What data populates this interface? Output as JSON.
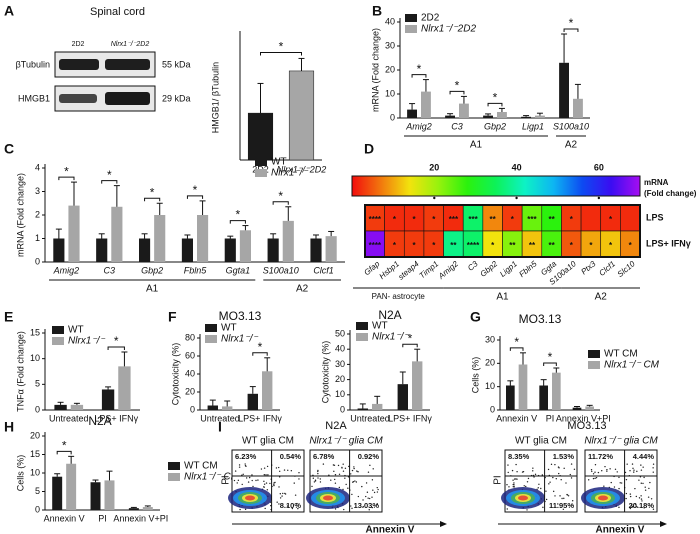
{
  "panel_letters": [
    "A",
    "B",
    "C",
    "D",
    "E",
    "F",
    "G",
    "H",
    "I"
  ],
  "blot": {
    "title": "Spinal cord",
    "lanes": [
      "2D2",
      "Nlrx1⁻/⁻2D2"
    ],
    "rows": [
      {
        "label": "βTubulin",
        "size": "55 kDa"
      },
      {
        "label": "HMGB1",
        "size": "29 kDa"
      }
    ]
  },
  "chart_data": [
    {
      "type": "bar",
      "ylabel": "HMGB1/ βTubulin",
      "categories": [
        "2D2",
        "Nlrx1⁻/⁻2D2"
      ],
      "values": [
        30,
        57
      ],
      "errors": [
        19,
        8
      ],
      "colors": [
        "#1a1a1a",
        "#a6a6a6"
      ],
      "ylim": [
        0,
        80
      ],
      "comparison": "*"
    },
    {
      "type": "grouped_bar",
      "ylabel": "mRNA (Fold change)",
      "categories": [
        "Amig2",
        "C3",
        "Gbp2",
        "Ligp1",
        "S100a10"
      ],
      "groups": [
        "A1",
        "A1",
        "A1",
        "A1",
        "A2"
      ],
      "series": [
        {
          "name": "2D2",
          "color": "#1a1a1a",
          "values": [
            3.5,
            1,
            1,
            0.5,
            23
          ],
          "errors": [
            2.5,
            0.8,
            0.7,
            0.5,
            12
          ]
        },
        {
          "name": "Nlrx1⁻/⁻2D2",
          "color": "#a6a6a6",
          "values": [
            11,
            6,
            2.5,
            1,
            8
          ],
          "errors": [
            5,
            3,
            1.5,
            1,
            6
          ]
        }
      ],
      "stars": [
        "*",
        "*",
        "*",
        null,
        "*"
      ],
      "ylim": [
        0,
        40
      ],
      "yticks": [
        0,
        10,
        20,
        30,
        40
      ]
    },
    {
      "type": "grouped_bar",
      "ylabel": "mRNA (Fold change)",
      "categories": [
        "Amig2",
        "C3",
        "Gbp2",
        "Fbln5",
        "Ggta1",
        "S100a10",
        "Clcf1"
      ],
      "groups": [
        "A1",
        "A1",
        "A1",
        "A1",
        "A1",
        "A2",
        "A2"
      ],
      "series": [
        {
          "name": "WT",
          "color": "#1a1a1a",
          "values": [
            1,
            1,
            1,
            1,
            1,
            1,
            1
          ],
          "errors": [
            0.4,
            0.2,
            0.2,
            0.15,
            0.1,
            0.2,
            0.15
          ]
        },
        {
          "name": "Nlrx1⁻/⁻",
          "color": "#a6a6a6",
          "values": [
            2.4,
            2.35,
            2.0,
            2.0,
            1.35,
            1.75,
            1.1
          ],
          "errors": [
            1.0,
            0.9,
            0.5,
            0.6,
            0.2,
            0.6,
            0.2
          ]
        }
      ],
      "stars": [
        "*",
        "*",
        "*",
        "*",
        "*",
        "*",
        null
      ],
      "ylim": [
        0,
        4
      ],
      "yticks": [
        0,
        1,
        2,
        3,
        4
      ]
    },
    {
      "type": "heatmap",
      "colorbar_label": [
        "mRNA",
        "(Fold change)"
      ],
      "zlim": [
        0,
        70
      ],
      "zticks": [
        20,
        40,
        60
      ],
      "rows": [
        "LPS",
        "LPS+ IFNγ"
      ],
      "columns": [
        "Gfap",
        "Hsbp1",
        "steap4",
        "Timp1",
        "Amig2",
        "C3",
        "Gbp2",
        "Ligp1",
        "Fbln5",
        "Ggta",
        "S100a10",
        "Ptx3",
        "Clcf1",
        "Slc10"
      ],
      "groups": [
        "PAN- astrocyte",
        "PAN- astrocyte",
        "PAN- astrocyte",
        "PAN- astrocyte",
        "A1",
        "A1",
        "A1",
        "A1",
        "A1",
        "A1",
        "A2",
        "A2",
        "A2",
        "A2"
      ],
      "values": [
        [
          3,
          2,
          2,
          3,
          2,
          36,
          8,
          3,
          24,
          28,
          3,
          2,
          2,
          2
        ],
        [
          68,
          3,
          3,
          3,
          38,
          36,
          14,
          22,
          12,
          26,
          5,
          10,
          12,
          8
        ]
      ],
      "annotations": [
        [
          "****",
          "*",
          "*",
          "*",
          "***",
          "***",
          "**",
          "*",
          "***",
          "**",
          "*",
          null,
          "*",
          null
        ],
        [
          "****",
          "*",
          "*",
          "*",
          "**",
          "****",
          "*",
          "**",
          "**",
          "**",
          "*",
          "*",
          "*",
          "*"
        ]
      ]
    },
    {
      "type": "grouped_bar",
      "ylabel": "TNFα (Fold change)",
      "categories": [
        "Untreated",
        "LPS+ IFNγ"
      ],
      "series": [
        {
          "name": "WT",
          "color": "#1a1a1a",
          "values": [
            1,
            4
          ],
          "errors": [
            0.5,
            0.5
          ]
        },
        {
          "name": "Nlrx1⁻/⁻",
          "color": "#a6a6a6",
          "values": [
            1,
            8.5
          ],
          "errors": [
            0.3,
            2.8
          ]
        }
      ],
      "stars": [
        null,
        "*"
      ],
      "ylim": [
        0,
        15
      ],
      "yticks": [
        0,
        5,
        10,
        15
      ]
    },
    {
      "type": "grouped_bar",
      "title": "MO3.13",
      "ylabel": "Cytotoxicity (%)",
      "categories": [
        "Untreated",
        "LPS+ IFNγ"
      ],
      "series": [
        {
          "name": "WT",
          "color": "#1a1a1a",
          "values": [
            5,
            18
          ],
          "errors": [
            6,
            8
          ]
        },
        {
          "name": "Nlrx1⁻/⁻",
          "color": "#a6a6a6",
          "values": [
            4,
            43
          ],
          "errors": [
            6,
            15
          ]
        }
      ],
      "stars": [
        null,
        "*"
      ],
      "ylim": [
        0,
        80
      ],
      "yticks": [
        0,
        20,
        40,
        60,
        80
      ]
    },
    {
      "type": "grouped_bar",
      "title": "N2A",
      "ylabel": "Cytotoxicity (%)",
      "categories": [
        "Untreated",
        "LPS+ IFNγ"
      ],
      "series": [
        {
          "name": "WT",
          "color": "#1a1a1a",
          "values": [
            1,
            17
          ],
          "errors": [
            3,
            8
          ]
        },
        {
          "name": "Nlrx1⁻/⁻",
          "color": "#a6a6a6",
          "values": [
            4,
            32
          ],
          "errors": [
            5,
            8
          ]
        }
      ],
      "stars": [
        null,
        "*"
      ],
      "ylim": [
        0,
        50
      ],
      "yticks": [
        0,
        10,
        20,
        30,
        40,
        50
      ]
    },
    {
      "type": "grouped_bar",
      "title": "MO3.13",
      "ylabel": "Cells (%)",
      "categories": [
        "Annexin V",
        "PI",
        "Annexin V+PI"
      ],
      "series": [
        {
          "name": "WT CM",
          "color": "#1a1a1a",
          "values": [
            10.5,
            10.5,
            1
          ],
          "errors": [
            2,
            2.5,
            0.5
          ]
        },
        {
          "name": "Nlrx1⁻/⁻ CM",
          "color": "#a6a6a6",
          "values": [
            19.5,
            16,
            1.5
          ],
          "errors": [
            5,
            2,
            0.5
          ]
        }
      ],
      "stars": [
        "*",
        "*",
        null
      ],
      "ylim": [
        0,
        30
      ],
      "yticks": [
        0,
        10,
        20,
        30
      ]
    },
    {
      "type": "grouped_bar",
      "title": "N2A",
      "ylabel": "Cells (%)",
      "categories": [
        "Annexin V",
        "PI",
        "Annexin V+PI"
      ],
      "series": [
        {
          "name": "WT CM",
          "color": "#1a1a1a",
          "values": [
            9,
            7.5,
            0.5
          ],
          "errors": [
            0.8,
            0.6,
            0.2
          ]
        },
        {
          "name": "Nlrx1⁻/⁻ CM",
          "color": "#a6a6a6",
          "values": [
            12.5,
            8,
            0.8
          ],
          "errors": [
            2,
            2.5,
            0.3
          ]
        }
      ],
      "stars": [
        "*",
        null,
        null
      ],
      "ylim": [
        0,
        20
      ],
      "yticks": [
        0,
        5,
        10,
        15,
        20
      ]
    }
  ],
  "flow": {
    "titles": [
      "N2A",
      "MO3.13"
    ],
    "x_label": "Annexin V",
    "y_label": "PI",
    "plots": [
      {
        "title": "WT glia CM",
        "upper_left": "6.23%",
        "upper_right": "0.54%",
        "lower_right": "8.10%"
      },
      {
        "title": "Nlrx1⁻/⁻ glia CM",
        "upper_left": "6.78%",
        "upper_right": "0.92%",
        "lower_right": "13.03%"
      },
      {
        "title": "WT glia CM",
        "upper_left": "8.35%",
        "upper_right": "1.53%",
        "lower_right": "11.95%"
      },
      {
        "title": "Nlrx1⁻/⁻ glia CM",
        "upper_left": "11.72%",
        "upper_right": "4.44%",
        "lower_right": "20.18%"
      }
    ]
  }
}
